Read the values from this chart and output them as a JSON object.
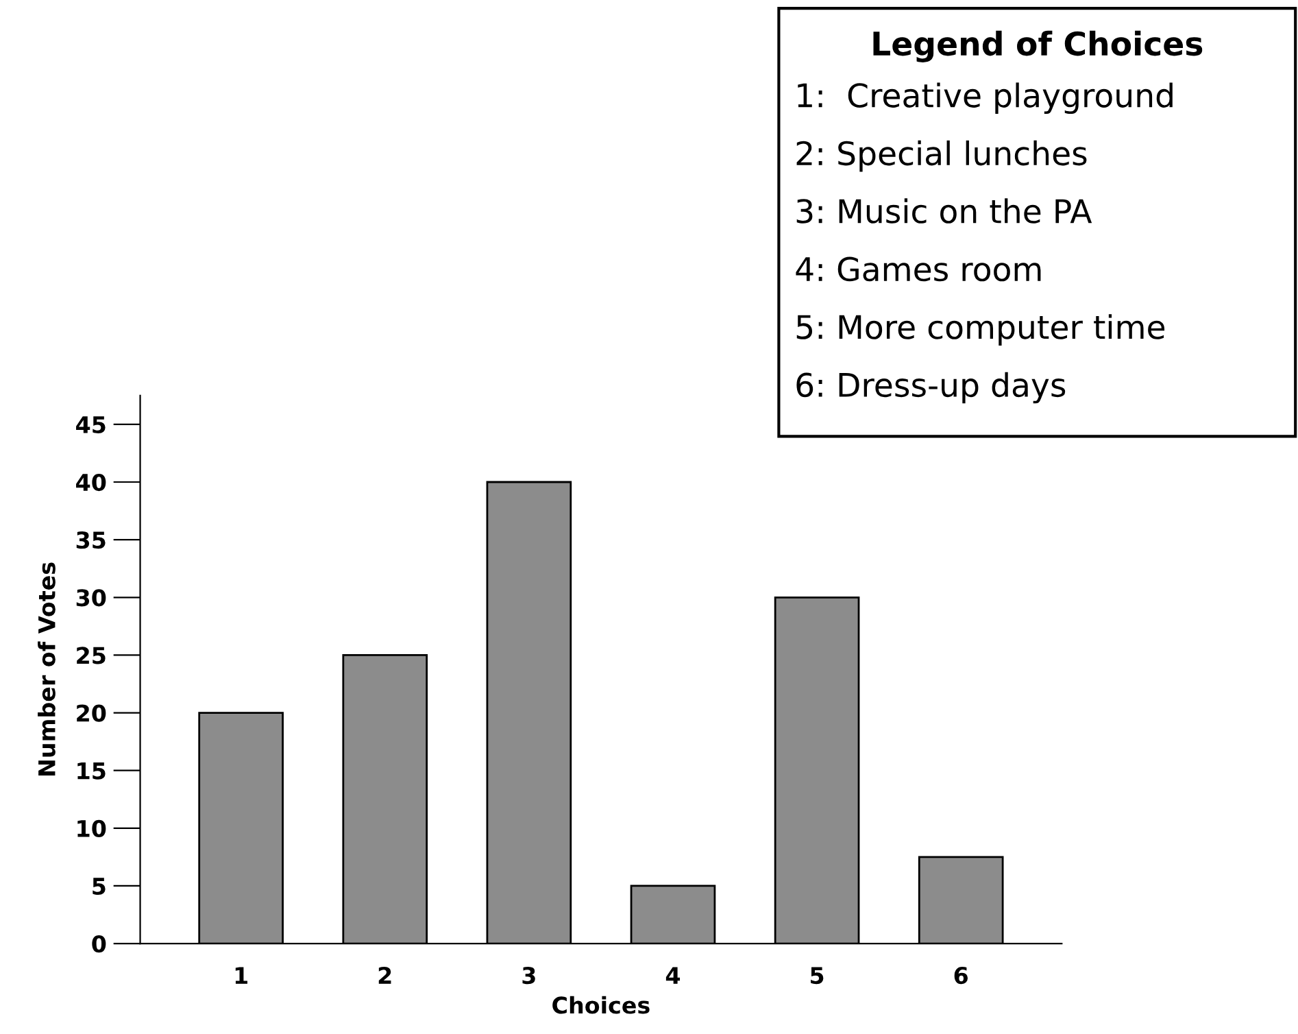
{
  "chart_data": {
    "type": "bar",
    "xlabel": "Choices",
    "ylabel": "Number of Votes",
    "categories": [
      "1",
      "2",
      "3",
      "4",
      "5",
      "6"
    ],
    "values": [
      20,
      25,
      40,
      5,
      30,
      7.5
    ],
    "color": "#8c8c8c",
    "ylim": [
      0,
      47.5
    ],
    "yticks": [
      0,
      5,
      10,
      15,
      20,
      25,
      30,
      35,
      40,
      45
    ],
    "grid": false,
    "legend_title": "Legend of Choices",
    "annotations": [
      "1:  Creative playground",
      "2: Special lunches",
      "3: Music on the PA",
      "4: Games room",
      "5: More computer time",
      "6: Dress-up days"
    ]
  }
}
